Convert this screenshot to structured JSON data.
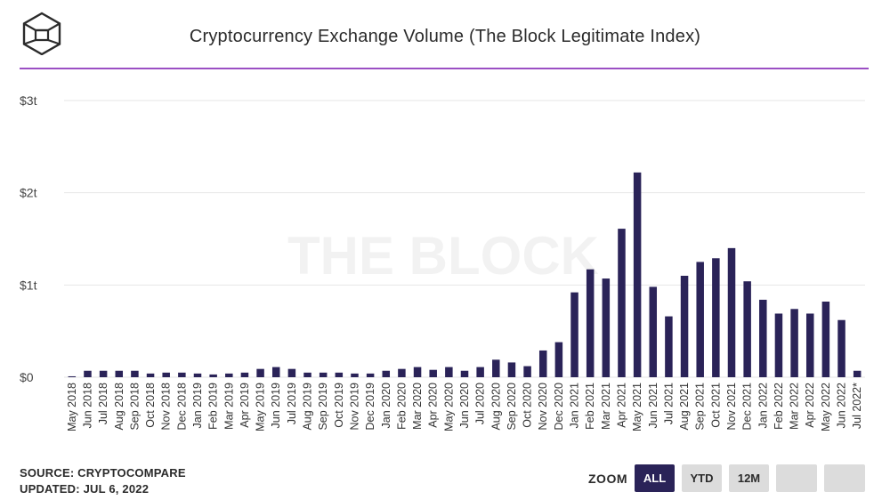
{
  "title": "Cryptocurrency Exchange Volume (The Block Legitimate Index)",
  "watermark": "THE BLOCK",
  "footer": {
    "source": "SOURCE: CRYPTOCOMPARE",
    "updated": "UPDATED: JUL 6, 2022"
  },
  "zoom": {
    "label": "ZOOM",
    "buttons": [
      "ALL",
      "YTD",
      "12M",
      "",
      ""
    ],
    "active": "ALL"
  },
  "colors": {
    "bar": "#2a2358",
    "accent": "#9b4fc4",
    "grid": "#e6e6e6"
  },
  "chart_data": {
    "type": "bar",
    "title": "Cryptocurrency Exchange Volume (The Block Legitimate Index)",
    "xlabel": "",
    "ylabel": "",
    "ylim": [
      0,
      3
    ],
    "yticks": [
      0,
      1,
      2,
      3
    ],
    "ytick_labels": [
      "$0",
      "$1t",
      "$2t",
      "$3t"
    ],
    "grid": true,
    "categories": [
      "May 2018",
      "Jun 2018",
      "Jul 2018",
      "Aug 2018",
      "Sep 2018",
      "Oct 2018",
      "Nov 2018",
      "Dec 2018",
      "Jan 2019",
      "Feb 2019",
      "Mar 2019",
      "Apr 2019",
      "May 2019",
      "Jun 2019",
      "Jul 2019",
      "Aug 2019",
      "Sep 2019",
      "Oct 2019",
      "Nov 2019",
      "Dec 2019",
      "Jan 2020",
      "Feb 2020",
      "Mar 2020",
      "Apr 2020",
      "May 2020",
      "Jun 2020",
      "Jul 2020",
      "Aug 2020",
      "Sep 2020",
      "Oct 2020",
      "Nov 2020",
      "Dec 2020",
      "Jan 2021",
      "Feb 2021",
      "Mar 2021",
      "Apr 2021",
      "May 2021",
      "Jun 2021",
      "Jul 2021",
      "Aug 2021",
      "Sep 2021",
      "Oct 2021",
      "Nov 2021",
      "Dec 2021",
      "Jan 2022",
      "Feb 2022",
      "Mar 2022",
      "Apr 2022",
      "May 2022",
      "Jun 2022",
      "Jul 2022*"
    ],
    "values": [
      0.01,
      0.07,
      0.07,
      0.07,
      0.07,
      0.04,
      0.05,
      0.05,
      0.04,
      0.03,
      0.04,
      0.05,
      0.09,
      0.11,
      0.09,
      0.05,
      0.05,
      0.05,
      0.04,
      0.04,
      0.07,
      0.09,
      0.11,
      0.08,
      0.11,
      0.07,
      0.11,
      0.19,
      0.16,
      0.12,
      0.29,
      0.38,
      0.92,
      1.17,
      1.07,
      1.61,
      2.22,
      0.98,
      0.66,
      1.1,
      1.25,
      1.29,
      1.4,
      1.04,
      0.84,
      0.69,
      0.74,
      0.69,
      0.82,
      0.62,
      0.07
    ]
  }
}
